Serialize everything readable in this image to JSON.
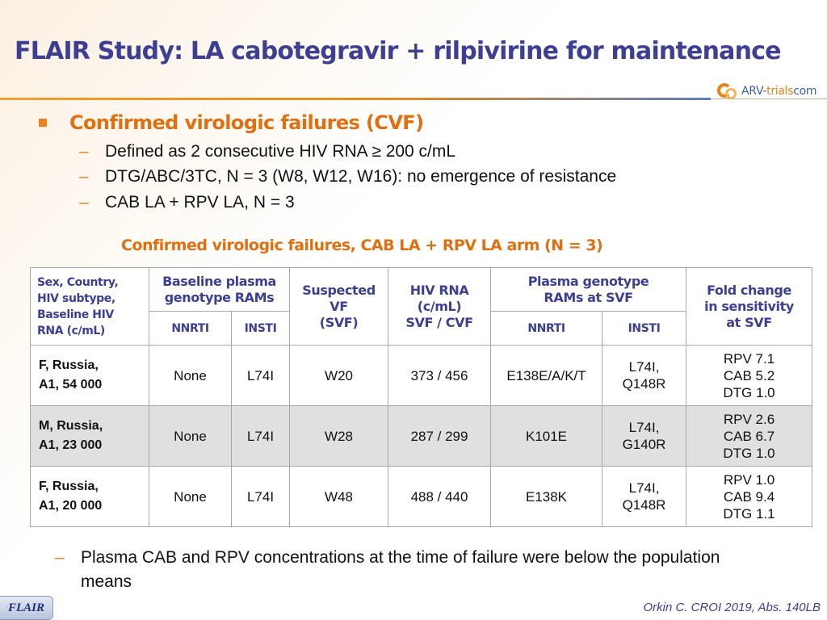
{
  "slide": {
    "title": "FLAIR Study: LA cabotegravir + rilpivirine for maintenance"
  },
  "logo": {
    "part1": "ARV-",
    "part2": "trials",
    "part3": "com"
  },
  "bullets": {
    "main": "Confirmed virologic failures (CVF)",
    "subs": [
      "Defined as 2 consecutive HIV RNA ≥ 200 c/mL",
      "DTG/ABC/3TC, N = 3 (W8, W12, W16): no emergence of resistance",
      "CAB LA + RPV LA, N = 3"
    ],
    "dash": "–"
  },
  "table": {
    "title": "Confirmed virologic failures, CAB LA + RPV LA arm (N = 3)",
    "headers": {
      "col1": [
        "Sex, Country,",
        "HIV subtype,",
        "Baseline HIV",
        "RNA (c/mL)"
      ],
      "baseline_group": [
        "Baseline plasma",
        "genotype RAMs"
      ],
      "nnrti": "NNRTI",
      "insti": "INSTI",
      "svf": [
        "Suspected",
        "VF",
        "(SVF)"
      ],
      "rna": [
        "HIV RNA",
        "(c/mL)",
        "SVF / CVF"
      ],
      "plasma_group": [
        "Plasma genotype",
        "RAMs at SVF"
      ],
      "nnrti2": "NNRTI",
      "insti2": "INSTI",
      "fold": [
        "Fold change",
        "in sensitivity",
        "at SVF"
      ]
    },
    "rows": [
      {
        "patient": [
          "F, Russia,",
          "A1, 54 000"
        ],
        "bl_nnrti": "None",
        "bl_insti": "L74I",
        "svf": "W20",
        "rna": "373 / 456",
        "svf_nnrti": "E138E/A/K/T",
        "svf_insti": [
          "L74I,",
          "Q148R"
        ],
        "fold": [
          "RPV 7.1",
          "CAB 5.2",
          "DTG 1.0"
        ]
      },
      {
        "patient": [
          "M, Russia,",
          "A1, 23 000"
        ],
        "bl_nnrti": "None",
        "bl_insti": "L74I",
        "svf": "W28",
        "rna": "287 / 299",
        "svf_nnrti": "K101E",
        "svf_insti": [
          "L74I,",
          "G140R"
        ],
        "fold": [
          "RPV 2.6",
          "CAB 6.7",
          "DTG 1.0"
        ]
      },
      {
        "patient": [
          "F, Russia,",
          "A1, 20 000"
        ],
        "bl_nnrti": "None",
        "bl_insti": "L74I",
        "svf": "W48",
        "rna": "488 / 440",
        "svf_nnrti": "E138K",
        "svf_insti": [
          "L74I,",
          "Q148R"
        ],
        "fold": [
          "RPV 1.0",
          "CAB 9.4",
          "DTG 1.1"
        ]
      }
    ]
  },
  "note": {
    "dash": "–",
    "text": "Plasma CAB and RPV concentrations at the time of failure were below the population means"
  },
  "footer": {
    "tag": "FLAIR",
    "citation": "Orkin C. CROI 2019, Abs. 140LB"
  },
  "colors": {
    "title": "#3c3f92",
    "accent_orange": "#e0700f",
    "row_shade": "#e0e0e0"
  }
}
